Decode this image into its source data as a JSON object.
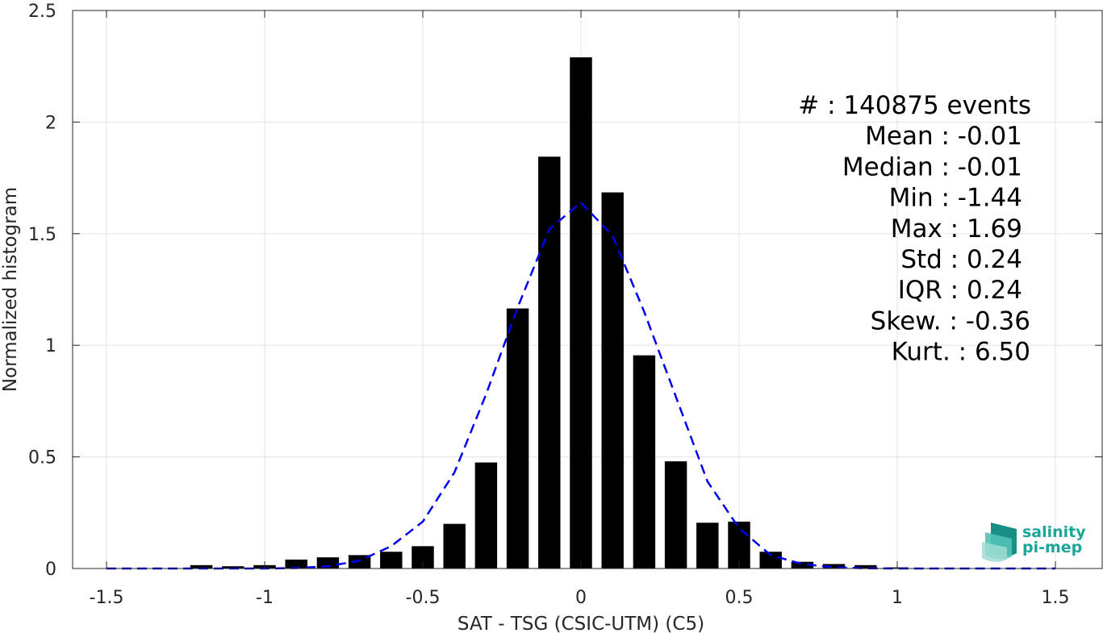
{
  "chart_data": {
    "type": "bar",
    "xlabel": "SAT - TSG (CSIC-UTM) (C5)",
    "ylabel": "Normalized histogram",
    "xlim": [
      -1.5,
      1.5
    ],
    "ylim": [
      0,
      2.5
    ],
    "xticks": [
      -1.5,
      -1,
      -0.5,
      0,
      0.5,
      1,
      1.5
    ],
    "xtick_labels": [
      "-1.5",
      "-1",
      "-0.5",
      "0",
      "0.5",
      "1",
      "1.5"
    ],
    "yticks": [
      0,
      0.5,
      1,
      1.5,
      2,
      2.5
    ],
    "ytick_labels": [
      "0",
      "0.5",
      "1",
      "1.5",
      "2",
      "2.5"
    ],
    "grid": true,
    "bin_width": 0.1,
    "bar_color": "#000000",
    "bars": {
      "x": [
        -1.5,
        -1.4,
        -1.3,
        -1.2,
        -1.1,
        -1.0,
        -0.9,
        -0.8,
        -0.7,
        -0.6,
        -0.5,
        -0.4,
        -0.3,
        -0.2,
        -0.1,
        0.0,
        0.1,
        0.2,
        0.3,
        0.4,
        0.5,
        0.6,
        0.7,
        0.8,
        0.9,
        1.0,
        1.1,
        1.2,
        1.3,
        1.4,
        1.5
      ],
      "values": [
        0.0,
        0.0,
        0.0,
        0.015,
        0.01,
        0.015,
        0.04,
        0.05,
        0.06,
        0.075,
        0.1,
        0.2,
        0.475,
        1.165,
        1.845,
        2.29,
        1.685,
        0.955,
        0.48,
        0.205,
        0.21,
        0.075,
        0.03,
        0.02,
        0.015,
        0.005,
        0.0,
        0.0,
        0.0,
        0.0,
        0.0
      ]
    },
    "fit_curve": {
      "style": "dashed",
      "color": "#0000ee",
      "x": [
        -1.5,
        -1.4,
        -1.3,
        -1.2,
        -1.1,
        -1.0,
        -0.9,
        -0.8,
        -0.7,
        -0.6,
        -0.5,
        -0.4,
        -0.3,
        -0.2,
        -0.1,
        0.0,
        0.1,
        0.2,
        0.3,
        0.4,
        0.5,
        0.6,
        0.7,
        0.8,
        0.9,
        1.0,
        1.1,
        1.2,
        1.3,
        1.4,
        1.5
      ],
      "values": [
        0.0,
        0.0,
        0.0,
        0.0,
        0.0,
        0.0,
        0.002,
        0.01,
        0.035,
        0.1,
        0.21,
        0.43,
        0.78,
        1.17,
        1.52,
        1.64,
        1.49,
        1.15,
        0.77,
        0.39,
        0.18,
        0.06,
        0.02,
        0.005,
        0.001,
        0.0,
        0.0,
        0.0,
        0.0,
        0.0,
        0.0
      ]
    },
    "annotations": [
      {
        "label": "#  ",
        "value": ": 140875 events"
      },
      {
        "label": "Mean ",
        "value": ": -0.01"
      },
      {
        "label": "Median ",
        "value": ": -0.01"
      },
      {
        "label": "Min ",
        "value": ": -1.44"
      },
      {
        "label": "Max ",
        "value": ": 1.69"
      },
      {
        "label": "Std ",
        "value": ": 0.24"
      },
      {
        "label": "IQR ",
        "value": ": 0.24"
      },
      {
        "label": "Skew. ",
        "value": ": -0.36"
      },
      {
        "label": "Kurt. ",
        "value": ": 6.50"
      }
    ]
  },
  "logo": {
    "line1": "salinity",
    "line2": "pi-mep",
    "icon": "salinity-wave-icon",
    "color": "#1aa79a"
  }
}
